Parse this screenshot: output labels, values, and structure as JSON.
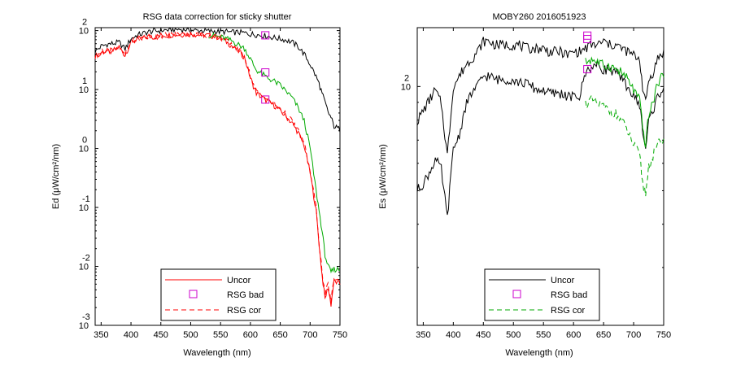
{
  "chart_data": [
    {
      "type": "line",
      "title": "RSG data correction for sticky shutter",
      "xlabel": "Wavelength (nm)",
      "ylabel": "Ed (μW/cm²/nm)",
      "xlim": [
        340,
        750
      ],
      "ylim_log10": [
        -3,
        2.05
      ],
      "yscale": "log",
      "x_ticks": [
        350,
        400,
        450,
        500,
        550,
        600,
        650,
        700,
        750
      ],
      "y_ticks": [
        {
          "base": "10",
          "exp": "2",
          "value_log10": 2
        },
        {
          "base": "10",
          "exp": "1",
          "value_log10": 1
        },
        {
          "base": "10",
          "exp": "0",
          "value_log10": 0
        },
        {
          "base": "10",
          "exp": "-1",
          "value_log10": -1
        },
        {
          "base": "10",
          "exp": "-2",
          "value_log10": -2
        },
        {
          "base": "10",
          "exp": "-3",
          "value_log10": -3
        }
      ],
      "legend": {
        "position": "bottom-center",
        "entries": [
          "Uncor",
          "RSG bad",
          "RSG cor"
        ]
      },
      "x": [
        340,
        350,
        360,
        370,
        380,
        390,
        400,
        410,
        420,
        430,
        440,
        450,
        460,
        470,
        480,
        490,
        500,
        510,
        520,
        530,
        540,
        550,
        560,
        570,
        580,
        590,
        600,
        605,
        610,
        620,
        630,
        640,
        650,
        660,
        670,
        680,
        690,
        700,
        710,
        715,
        720,
        725,
        730,
        735,
        740,
        750
      ],
      "series": [
        {
          "name": "Uncor",
          "color": "#ff0000",
          "style": "solid",
          "log10_values": [
            1.57,
            1.63,
            1.65,
            1.66,
            1.72,
            1.58,
            1.8,
            1.86,
            1.87,
            1.9,
            1.89,
            1.92,
            1.92,
            1.93,
            1.93,
            1.94,
            1.94,
            1.93,
            1.92,
            1.92,
            1.9,
            1.88,
            1.81,
            1.73,
            1.65,
            1.55,
            1.2,
            1.06,
            0.94,
            0.86,
            0.79,
            0.73,
            0.64,
            0.54,
            0.43,
            0.27,
            0.05,
            -0.42,
            -1.05,
            -1.62,
            -2.15,
            -2.55,
            -2.35,
            -2.65,
            -2.25,
            -2.3
          ]
        },
        {
          "name": "",
          "color": "#000000",
          "style": "solid",
          "log10_values": [
            1.65,
            1.73,
            1.77,
            1.78,
            1.8,
            1.69,
            1.86,
            1.92,
            1.95,
            1.98,
            1.99,
            2.0,
            2.01,
            2.02,
            2.02,
            2.02,
            2.01,
            2.0,
            2.0,
            1.99,
            1.99,
            1.98,
            1.98,
            1.97,
            1.97,
            1.96,
            1.94,
            1.94,
            1.93,
            1.92,
            1.9,
            1.88,
            1.86,
            1.84,
            1.8,
            1.73,
            1.6,
            1.43,
            1.22,
            1.1,
            0.93,
            0.78,
            0.62,
            0.52,
            0.38,
            0.32
          ]
        },
        {
          "name": "",
          "color": "#00aa00",
          "style": "solid",
          "log10_values": [
            null,
            null,
            null,
            null,
            null,
            null,
            null,
            null,
            null,
            null,
            null,
            null,
            null,
            null,
            null,
            null,
            null,
            null,
            null,
            1.92,
            1.91,
            1.89,
            1.86,
            1.82,
            1.76,
            1.7,
            1.52,
            1.42,
            1.33,
            1.26,
            1.19,
            1.14,
            1.07,
            0.97,
            0.86,
            0.69,
            0.47,
            0.01,
            -0.72,
            -1.05,
            -1.4,
            -1.8,
            -2.0,
            -2.1,
            -2.05,
            -2.05
          ]
        },
        {
          "name": "RSG bad",
          "color": "#cc00cc",
          "style": "marker",
          "points": [
            [
              625,
              1.92
            ],
            [
              625,
              1.29
            ],
            [
              625,
              0.83
            ]
          ]
        },
        {
          "name": "RSG cor",
          "color": "#ff0000",
          "style": "dashed",
          "log10_values": [
            1.57,
            1.63,
            1.65,
            1.66,
            1.72,
            1.58,
            1.8,
            1.86,
            1.87,
            1.9,
            1.89,
            1.92,
            1.92,
            1.93,
            1.93,
            1.94,
            1.94,
            1.93,
            1.92,
            1.92,
            1.9,
            1.88,
            1.82,
            1.74,
            1.67,
            1.57,
            1.23,
            1.09,
            0.97,
            0.89,
            0.82,
            0.76,
            0.67,
            0.57,
            0.46,
            0.3,
            0.08,
            -0.38,
            -1.0,
            -1.58,
            -2.1,
            -2.5,
            -2.3,
            -2.6,
            -2.2,
            -2.25
          ]
        }
      ]
    },
    {
      "type": "line",
      "title": "MOBY260  2016051923",
      "xlabel": "Wavelength (nm)",
      "ylabel": "Es (μW/cm²/nm)",
      "xlim": [
        340,
        750
      ],
      "ylim_log10": [
        1.31,
        2.17
      ],
      "yscale": "log",
      "x_ticks": [
        350,
        400,
        450,
        500,
        550,
        600,
        650,
        700,
        750
      ],
      "y_ticks": [
        {
          "base": "10",
          "exp": "2",
          "value_log10": 2
        }
      ],
      "legend": {
        "position": "bottom-center",
        "entries": [
          "Uncor",
          "RSG bad",
          "RSG cor"
        ]
      },
      "x": [
        340,
        350,
        360,
        370,
        380,
        390,
        400,
        410,
        420,
        430,
        440,
        450,
        460,
        470,
        480,
        490,
        500,
        510,
        520,
        530,
        540,
        550,
        560,
        570,
        580,
        590,
        600,
        610,
        620,
        630,
        640,
        650,
        660,
        670,
        680,
        690,
        700,
        710,
        715,
        720,
        725,
        730,
        740,
        750
      ],
      "series": [
        {
          "name": "Uncor",
          "color": "#000000",
          "style": "solid",
          "log10_values": [
            1.9,
            1.93,
            1.96,
            1.99,
            1.95,
            1.8,
            2.0,
            2.03,
            2.06,
            2.08,
            2.1,
            2.13,
            2.13,
            2.12,
            2.12,
            2.12,
            2.12,
            2.12,
            2.11,
            2.11,
            2.11,
            2.11,
            2.1,
            2.1,
            2.1,
            2.09,
            2.1,
            2.1,
            2.11,
            2.12,
            2.12,
            2.13,
            2.12,
            2.12,
            2.11,
            2.1,
            2.09,
            2.08,
            2.0,
            1.95,
            2.02,
            2.03,
            2.08,
            2.1
          ]
        },
        {
          "name": "",
          "color": "#000000",
          "style": "solid",
          "log10_values": [
            1.7,
            1.72,
            1.75,
            1.79,
            1.76,
            1.62,
            1.82,
            1.86,
            1.94,
            1.98,
            2.0,
            2.03,
            2.03,
            2.02,
            2.02,
            2.02,
            2.02,
            2.01,
            2.01,
            2.0,
            1.99,
            1.99,
            1.98,
            1.98,
            1.98,
            1.97,
            1.97,
            1.97,
            2.04,
            2.06,
            2.06,
            2.05,
            2.05,
            2.04,
            2.02,
            2.0,
            1.97,
            1.95,
            1.87,
            1.82,
            1.9,
            1.92,
            1.97,
            2.0
          ]
        },
        {
          "name": "",
          "color": "#00aa00",
          "style": "solid",
          "log10_values": [
            null,
            null,
            null,
            null,
            null,
            null,
            null,
            null,
            null,
            null,
            null,
            null,
            null,
            null,
            null,
            null,
            null,
            null,
            null,
            null,
            null,
            null,
            null,
            null,
            null,
            null,
            null,
            null,
            2.07,
            2.08,
            2.07,
            2.06,
            2.06,
            2.05,
            2.04,
            2.02,
            1.99,
            1.96,
            1.88,
            1.83,
            1.92,
            1.94,
            2.01,
            2.04
          ]
        },
        {
          "name": "RSG bad",
          "color": "#cc00cc",
          "style": "marker",
          "points": [
            [
              623,
              2.147
            ],
            [
              623,
              2.137
            ],
            [
              623,
              2.05
            ]
          ]
        },
        {
          "name": "RSG cor",
          "color": "#00aa00",
          "style": "dashed",
          "log10_values": [
            null,
            null,
            null,
            null,
            null,
            null,
            null,
            null,
            null,
            null,
            null,
            null,
            null,
            null,
            null,
            null,
            null,
            null,
            null,
            null,
            null,
            null,
            null,
            null,
            null,
            null,
            null,
            null,
            1.95,
            1.96,
            1.95,
            1.94,
            1.93,
            1.92,
            1.9,
            1.87,
            1.83,
            1.8,
            1.72,
            1.69,
            1.77,
            1.79,
            1.83,
            1.85
          ]
        }
      ]
    }
  ]
}
